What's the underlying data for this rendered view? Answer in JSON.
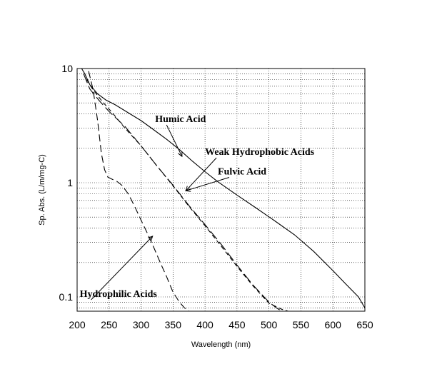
{
  "chart_data": {
    "type": "line",
    "xlabel": "Wavelength (nm)",
    "ylabel": "Sp. Abs. (L/m/mg-C)",
    "xlim": [
      200,
      650
    ],
    "ylim": [
      0.075,
      10
    ],
    "y_scale": "log",
    "grid": true,
    "x_ticks": [
      200,
      250,
      300,
      350,
      400,
      450,
      500,
      550,
      600,
      650
    ],
    "y_ticks": [
      {
        "value": 0.1,
        "label": "0.1"
      },
      {
        "value": 1,
        "label": "1"
      },
      {
        "value": 10,
        "label": "10"
      }
    ],
    "series": [
      {
        "name": "Humic Acid",
        "style": "solid",
        "x": [
          207,
          212,
          220,
          232,
          245,
          260,
          280,
          300,
          320,
          340,
          360,
          380,
          400,
          420,
          450,
          480,
          510,
          540,
          570,
          600,
          620,
          640,
          650
        ],
        "y": [
          10,
          9.0,
          7.2,
          6.0,
          5.3,
          4.8,
          4.1,
          3.5,
          2.9,
          2.4,
          1.95,
          1.55,
          1.25,
          1.02,
          0.78,
          0.6,
          0.46,
          0.35,
          0.25,
          0.17,
          0.13,
          0.1,
          0.08
        ]
      },
      {
        "name": "Weak Hydrophobic Acids",
        "style": "long-dash",
        "x": [
          210,
          220,
          235,
          250,
          275,
          300,
          325,
          350,
          375,
          400,
          425,
          450,
          475,
          500,
          512,
          520
        ],
        "y": [
          9.0,
          6.6,
          5.2,
          4.2,
          3.1,
          2.1,
          1.4,
          0.95,
          0.63,
          0.43,
          0.29,
          0.19,
          0.127,
          0.09,
          0.08,
          0.075
        ]
      },
      {
        "name": "Fulvic Acid",
        "style": "short-dash",
        "x": [
          215,
          225,
          240,
          255,
          275,
          300,
          325,
          350,
          375,
          400,
          425,
          450,
          475,
          500,
          520,
          530
        ],
        "y": [
          8.0,
          6.5,
          5.1,
          4.1,
          3.0,
          2.1,
          1.4,
          0.94,
          0.62,
          0.42,
          0.28,
          0.185,
          0.125,
          0.088,
          0.078,
          0.075
        ]
      },
      {
        "name": "Hydrophilic Acids",
        "style": "dash",
        "x": [
          218,
          225,
          232,
          238,
          243,
          248,
          255,
          262,
          270,
          280,
          290,
          300,
          310,
          320,
          330,
          340,
          350,
          360,
          368,
          375
        ],
        "y": [
          9.5,
          6.5,
          3.5,
          1.8,
          1.3,
          1.12,
          1.07,
          1.03,
          0.95,
          0.8,
          0.62,
          0.47,
          0.36,
          0.27,
          0.2,
          0.15,
          0.11,
          0.09,
          0.08,
          0.075
        ]
      }
    ],
    "annotations": [
      {
        "text": "Humic Acid",
        "x": 322,
        "y": 3.4,
        "arrow_to_x": 364,
        "arrow_to_y": 1.7
      },
      {
        "text": "Weak Hydrophobic Acids",
        "x": 400,
        "y": 1.75,
        "arrow_to_x": 370,
        "arrow_to_y": 0.85
      },
      {
        "text": "Fulvic Acid",
        "x": 420,
        "y": 1.18,
        "arrow_to_x": 370,
        "arrow_to_y": 0.85
      },
      {
        "text": "Hydrophilic Acids",
        "x": 204,
        "y": 0.1,
        "arrow_to_x": 318,
        "arrow_to_y": 0.34
      }
    ]
  }
}
